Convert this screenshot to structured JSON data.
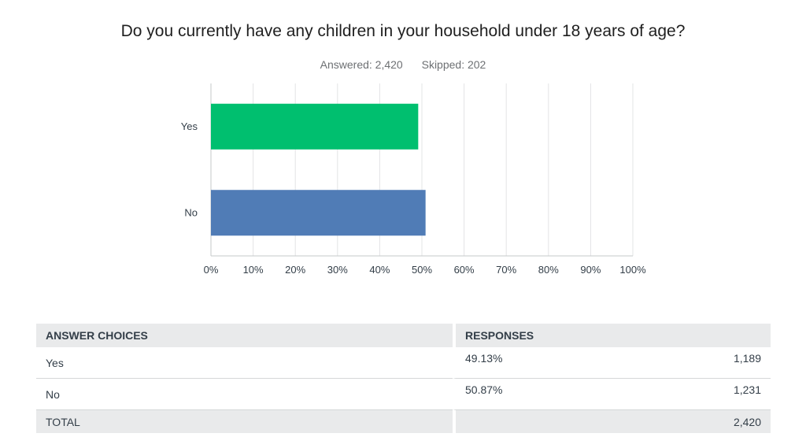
{
  "question": "Do you currently have any children in your household under 18 years of age?",
  "stats": {
    "answered": "Answered: 2,420",
    "skipped": "Skipped: 202"
  },
  "chart_data": {
    "type": "bar",
    "orientation": "horizontal",
    "categories": [
      "Yes",
      "No"
    ],
    "values": [
      49.13,
      50.87
    ],
    "colors": [
      "#00bf6f",
      "#507cb6"
    ],
    "xlim": [
      0,
      100
    ],
    "ticks": [
      "0%",
      "10%",
      "20%",
      "30%",
      "40%",
      "50%",
      "60%",
      "70%",
      "80%",
      "90%",
      "100%"
    ],
    "grid": true
  },
  "table": {
    "headers": [
      "ANSWER CHOICES",
      "RESPONSES"
    ],
    "rows": [
      {
        "choice": "Yes",
        "percent": "49.13%",
        "count": "1,189"
      },
      {
        "choice": "No",
        "percent": "50.87%",
        "count": "1,231"
      }
    ],
    "total": {
      "label": "TOTAL",
      "count": "2,420"
    }
  }
}
